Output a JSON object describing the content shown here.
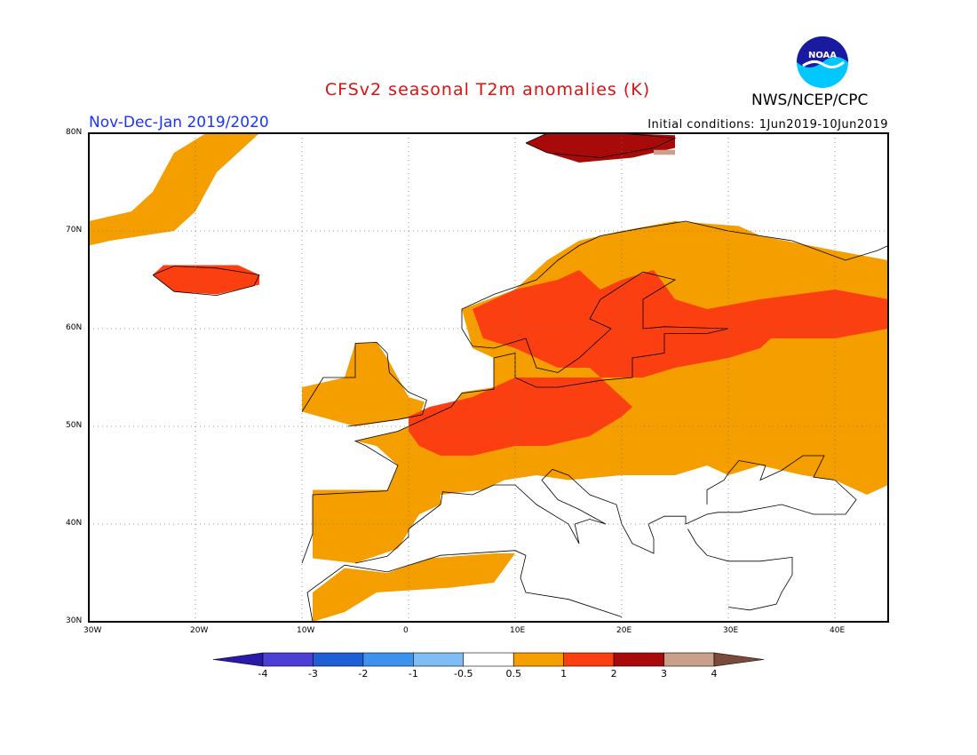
{
  "title": "CFSv2 seasonal T2m anomalies (K)",
  "season": "Nov-Dec-Jan 2019/2020",
  "initial_conditions": "Initial conditions: 1Jun2019-10Jun2019",
  "agency": "NWS/NCEP/CPC",
  "logo_icon": "noaa-logo-icon",
  "map": {
    "lon_range": [
      -30,
      45
    ],
    "lat_range": [
      30,
      80
    ],
    "lat_labels": [
      "30N",
      "40N",
      "50N",
      "60N",
      "70N",
      "80N"
    ],
    "lon_labels": [
      "30W",
      "20W",
      "10W",
      "0",
      "10E",
      "20E",
      "30E",
      "40E"
    ],
    "grid": "dotted"
  },
  "colorbar": {
    "labels": [
      "-4",
      "-3",
      "-2",
      "-1",
      "-0.5",
      "0.5",
      "1",
      "2",
      "3",
      "4"
    ],
    "colors": [
      "#2a1aa8",
      "#4b3fd4",
      "#1f5fd6",
      "#3d92f0",
      "#7fbdf5",
      "#ffffff",
      "#f59e00",
      "#fb3f10",
      "#a80a0a",
      "#c9a08a",
      "#7a4a3a"
    ]
  },
  "anomaly_colors": {
    "a05": "#f59e00",
    "a1": "#fb3f10",
    "a2": "#a80a0a",
    "a3": "#c9a08a"
  }
}
